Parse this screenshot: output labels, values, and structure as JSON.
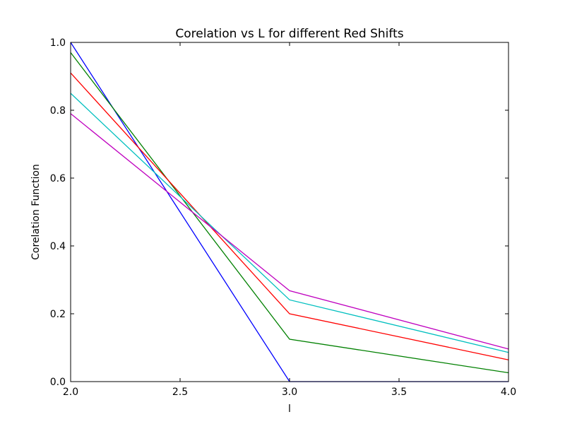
{
  "chart_data": {
    "type": "line",
    "title": "Corelation vs L for different Red Shifts",
    "xlabel": "l",
    "ylabel": "Corelation Function",
    "xlim": [
      2.0,
      4.0
    ],
    "ylim": [
      0.0,
      1.0
    ],
    "xticks": [
      2.0,
      2.5,
      3.0,
      3.5,
      4.0
    ],
    "xtick_labels": [
      "2.0",
      "2.5",
      "3.0",
      "3.5",
      "4.0"
    ],
    "yticks": [
      0.0,
      0.2,
      0.4,
      0.6,
      0.8,
      1.0
    ],
    "ytick_labels": [
      "0.0",
      "0.2",
      "0.4",
      "0.6",
      "0.8",
      "1.0"
    ],
    "grid": false,
    "legend": false,
    "x": [
      2.0,
      3.0,
      4.0
    ],
    "series": [
      {
        "color": "#0000ff",
        "values": [
          1.0,
          0.0,
          0.0
        ]
      },
      {
        "color": "#008000",
        "values": [
          0.97,
          0.125,
          0.026
        ]
      },
      {
        "color": "#ff0000",
        "values": [
          0.91,
          0.2,
          0.064
        ]
      },
      {
        "color": "#00bfbf",
        "values": [
          0.85,
          0.241,
          0.086
        ]
      },
      {
        "color": "#bf00bf",
        "values": [
          0.79,
          0.268,
          0.096
        ]
      }
    ]
  }
}
